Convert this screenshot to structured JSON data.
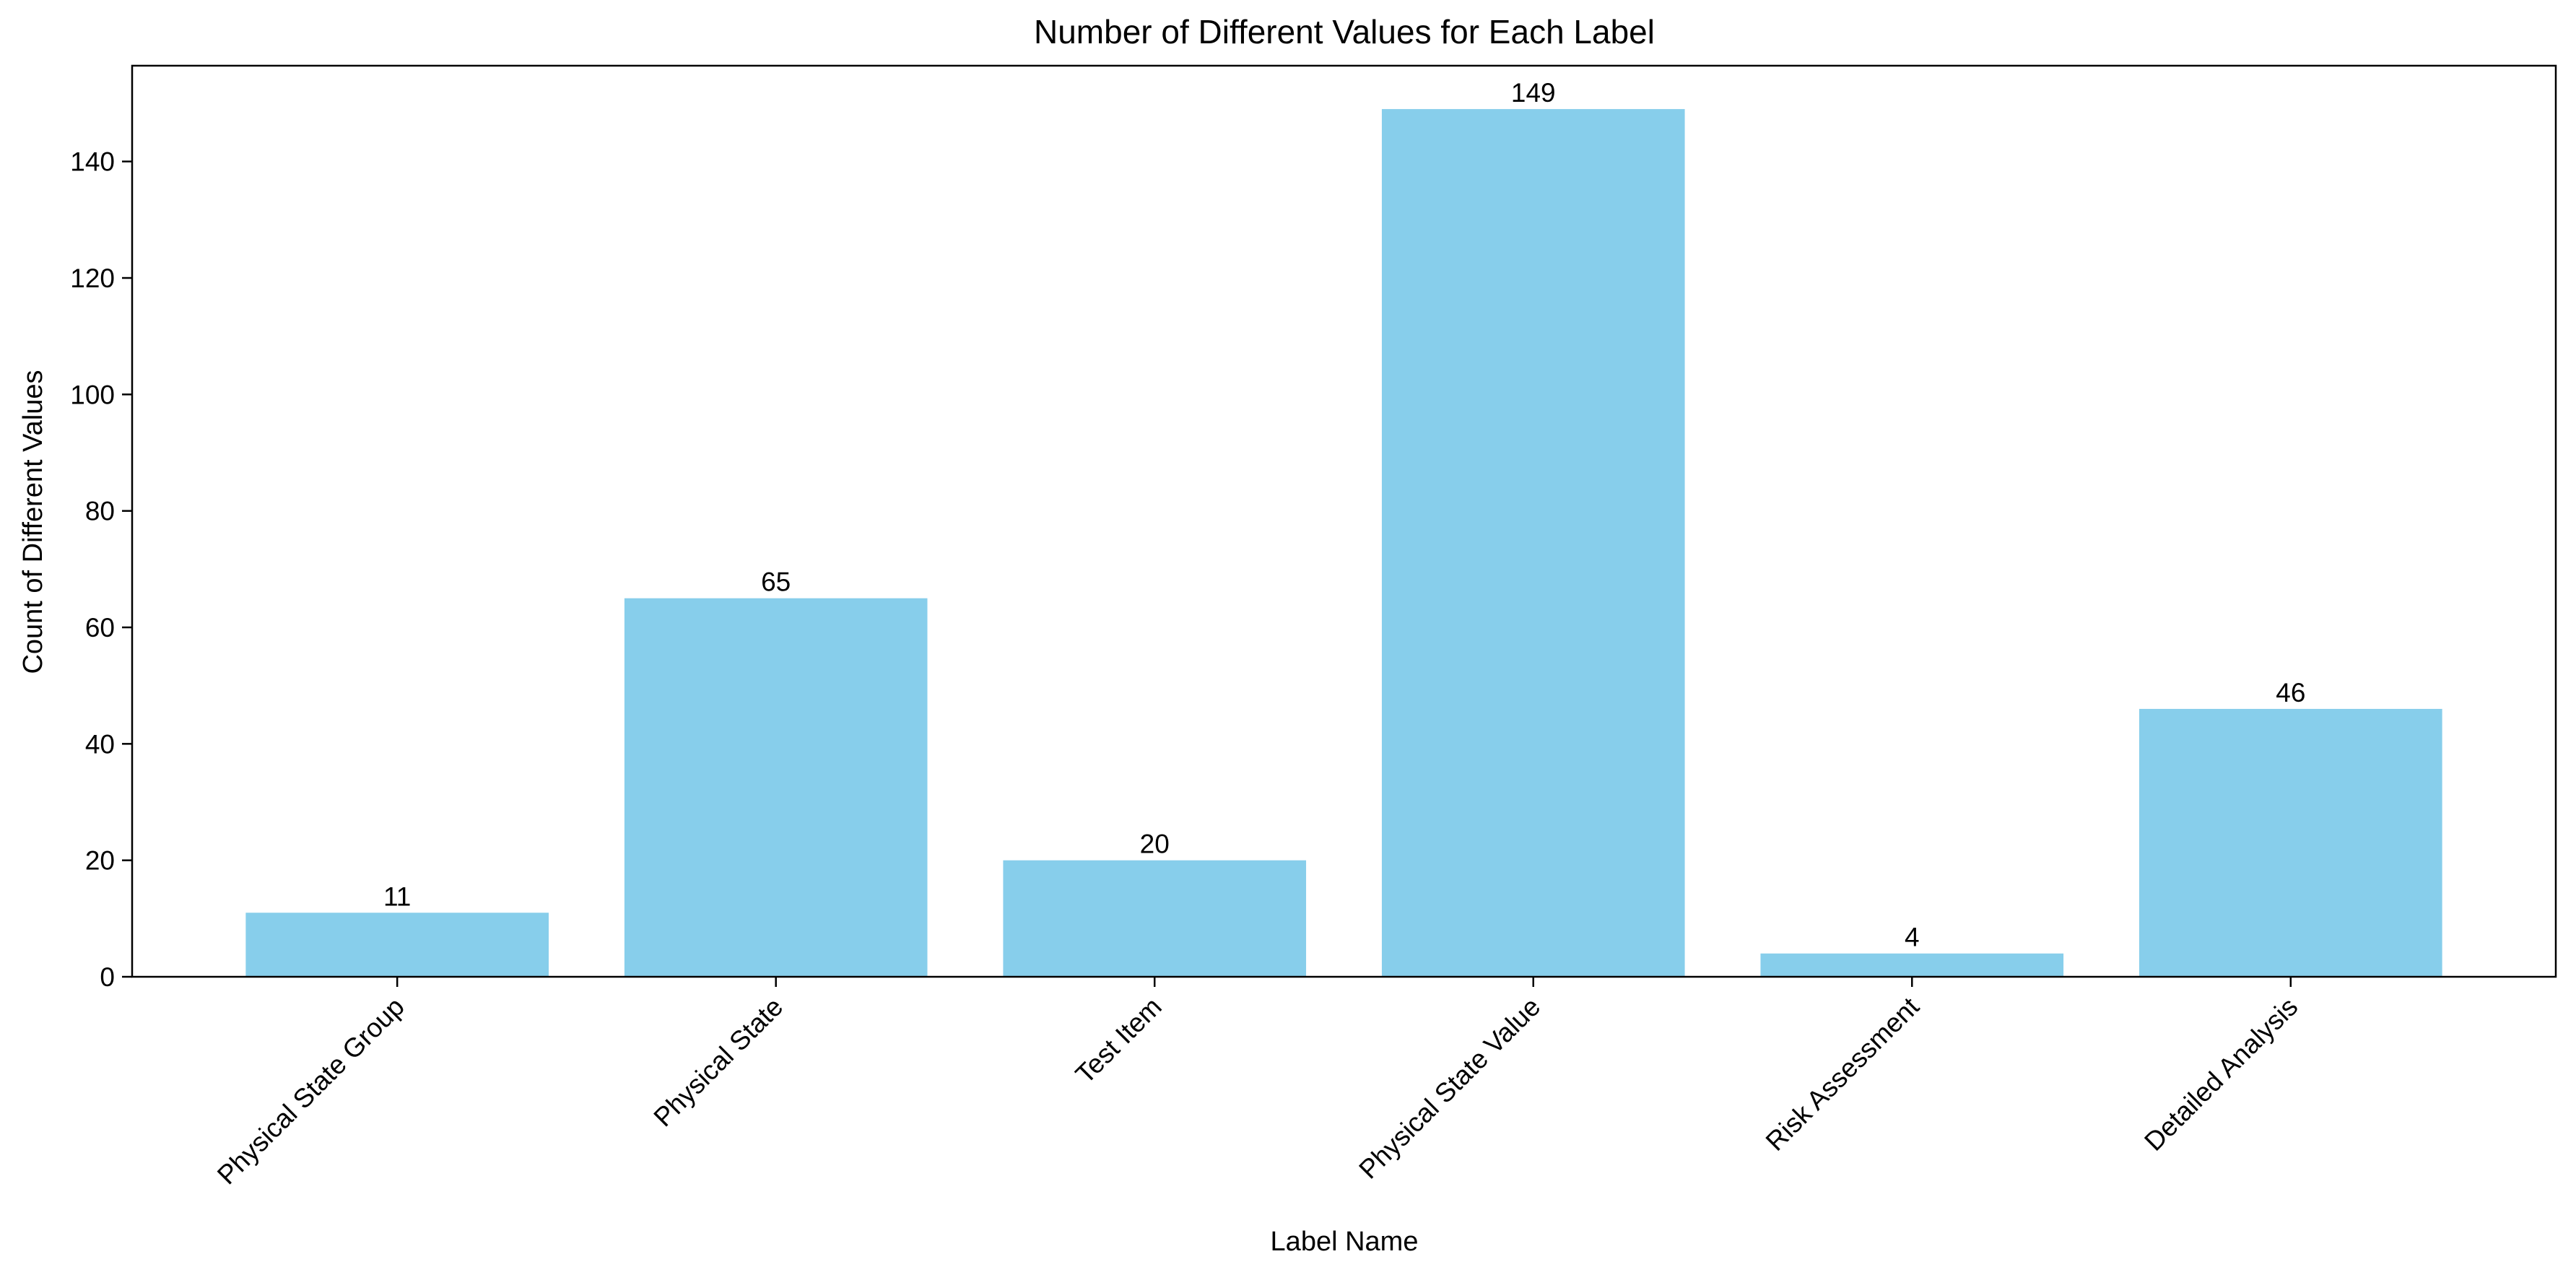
{
  "chart_data": {
    "type": "bar",
    "title": "Number of Different Values for Each Label",
    "xlabel": "Label Name",
    "ylabel": "Count of Different Values",
    "categories": [
      "Physical State Group",
      "Physical State",
      "Test Item",
      "Physical State Value",
      "Risk Assessment",
      "Detailed Analysis"
    ],
    "values": [
      11,
      65,
      20,
      149,
      4,
      46
    ],
    "value_labels": [
      "11",
      "65",
      "20",
      "149",
      "4",
      "46"
    ],
    "yticks": [
      0,
      20,
      40,
      60,
      80,
      100,
      120,
      140
    ],
    "ytick_labels": [
      "0",
      "20",
      "40",
      "60",
      "80",
      "100",
      "120",
      "140"
    ],
    "ylim": [
      0,
      156.45
    ],
    "grid": false,
    "legend": "none",
    "bar_color": "#87CEEB",
    "x_tick_rotation_deg": -45
  }
}
